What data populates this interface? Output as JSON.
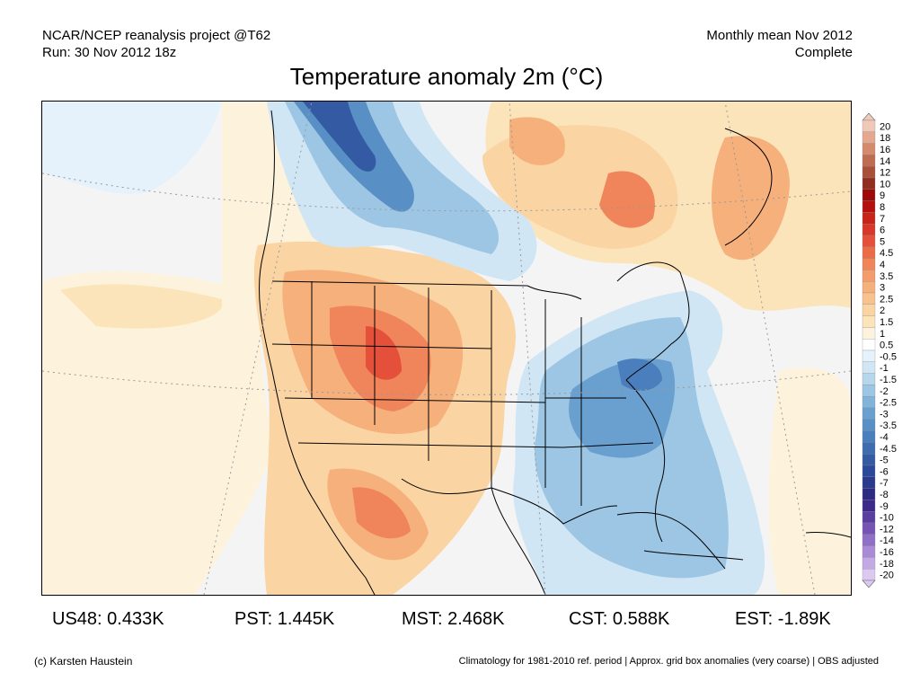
{
  "header": {
    "source": "NCAR/NCEP reanalysis project @T62",
    "run": "Run: 30 Nov 2012 18z",
    "period": "Monthly mean Nov 2012",
    "status": "Complete"
  },
  "title": "Temperature anomaly 2m (°C)",
  "colorbar": {
    "labels": [
      "20",
      "18",
      "16",
      "14",
      "12",
      "10",
      "9",
      "8",
      "7",
      "6",
      "5",
      "4.5",
      "4",
      "3.5",
      "3",
      "2.5",
      "2",
      "1.5",
      "1",
      "0.5",
      "-0.5",
      "-1",
      "-1.5",
      "-2",
      "-2.5",
      "-3",
      "-3.5",
      "-4",
      "-4.5",
      "-5",
      "-6",
      "-7",
      "-8",
      "-9",
      "-10",
      "-12",
      "-14",
      "-16",
      "-18",
      "-20"
    ],
    "colors": [
      "#f0c8b8",
      "#e4a890",
      "#d48a6c",
      "#c06c52",
      "#a8503a",
      "#902e22",
      "#9c0a0a",
      "#b41010",
      "#c82418",
      "#d8382a",
      "#e4503a",
      "#ec6c48",
      "#f0845a",
      "#f49c6c",
      "#f6b07c",
      "#f8c28e",
      "#fad4a2",
      "#fce4ba",
      "#fdf3dc",
      "#ffffff",
      "#e6f2fb",
      "#d0e6f4",
      "#b6d6ec",
      "#9cc6e4",
      "#82b4da",
      "#6aa0d0",
      "#5890c6",
      "#4a7ebc",
      "#3e6cb0",
      "#345aa4",
      "#2c4898",
      "#2a3a8c",
      "#2e2c80",
      "#3c2a8a",
      "#5a3ea0",
      "#7654b4",
      "#9070c6",
      "#aa8cd6",
      "#c4aae4",
      "#dcc8f0"
    ]
  },
  "stats": [
    {
      "label": "US48: 0.433K"
    },
    {
      "label": "PST: 1.445K"
    },
    {
      "label": "MST: 2.468K"
    },
    {
      "label": "CST: 0.588K"
    },
    {
      "label": "EST: -1.89K"
    }
  ],
  "footer": {
    "credit": "(c) Karsten Haustein",
    "note": "Climatology for 1981-2010 ref. period | Approx. grid box anomalies (very coarse) | OBS adjusted"
  }
}
